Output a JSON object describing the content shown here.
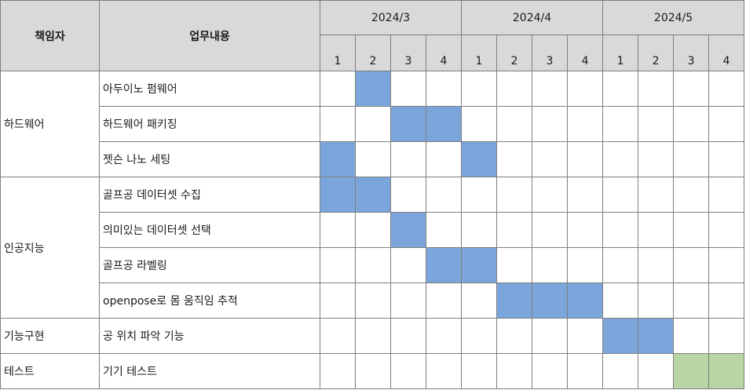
{
  "header": {
    "owner": "책임자",
    "task": "업무내용"
  },
  "months": [
    "2024/3",
    "2024/4",
    "2024/5"
  ],
  "weeks": [
    "1",
    "2",
    "3",
    "4",
    "1",
    "2",
    "3",
    "4",
    "1",
    "2",
    "3",
    "4"
  ],
  "groups": [
    {
      "owner": "하드웨어",
      "tasks": [
        {
          "name": "아두이노 펌웨어",
          "active": [
            1
          ],
          "color": "blue"
        },
        {
          "name": "하드웨어 패키징",
          "active": [
            2,
            3
          ],
          "color": "blue"
        },
        {
          "name": "젯슨 나노 세팅",
          "active": [
            0,
            4
          ],
          "color": "blue"
        }
      ]
    },
    {
      "owner": "인공지능",
      "tasks": [
        {
          "name": "골프공 데이터셋 수집",
          "active": [
            0,
            1
          ],
          "color": "blue"
        },
        {
          "name": "의미있는 데이터셋 선택",
          "active": [
            2
          ],
          "color": "blue"
        },
        {
          "name": "골프공 라벨링",
          "active": [
            3,
            4
          ],
          "color": "blue"
        },
        {
          "name": "openpose로 몸 움직임 추적",
          "active": [
            5,
            6,
            7
          ],
          "color": "blue"
        }
      ]
    },
    {
      "owner": "기능구현",
      "tasks": [
        {
          "name": "공 위치 파악 기능",
          "active": [
            8,
            9
          ],
          "color": "blue"
        }
      ]
    },
    {
      "owner": "테스트",
      "tasks": [
        {
          "name": "기기 테스트",
          "active": [
            10,
            11
          ],
          "color": "green"
        }
      ]
    }
  ],
  "colors": {
    "header_bg": "#d9d9d9",
    "blue": "#7aa6dc",
    "green": "#b8d6a3",
    "border": "#7f7f7f"
  }
}
